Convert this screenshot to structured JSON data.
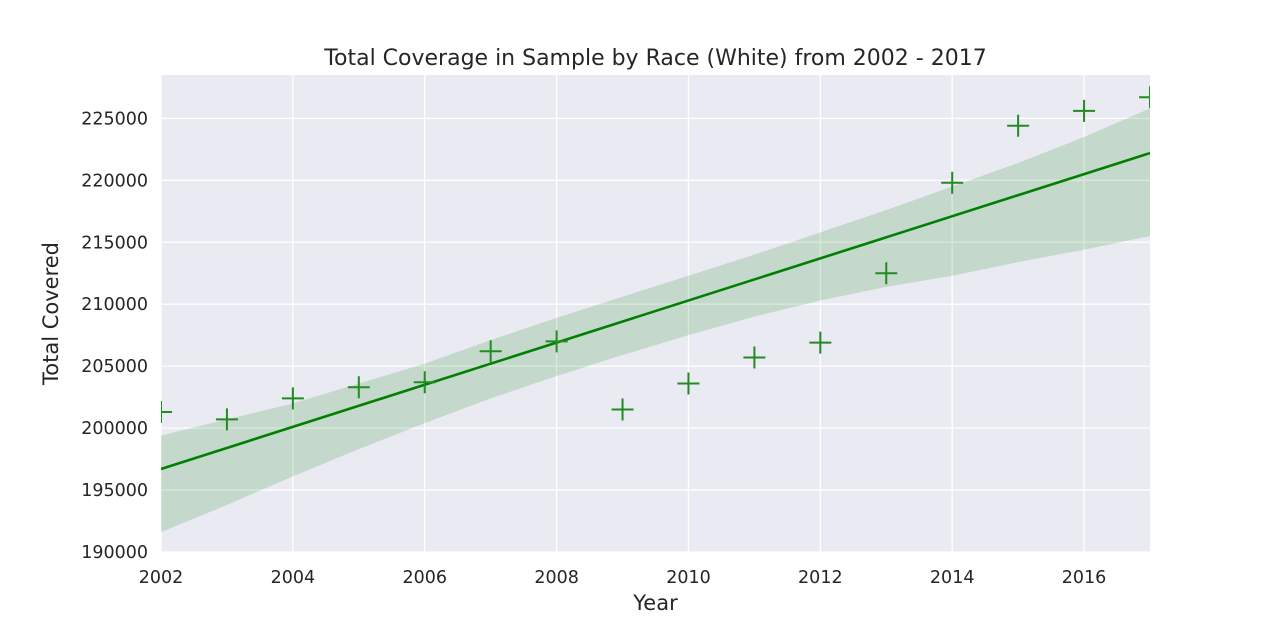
{
  "chart_data": {
    "type": "scatter",
    "title": "Total Coverage in Sample by Race (White) from 2002 - 2017",
    "xlabel": "Year",
    "ylabel": "Total Covered",
    "xlim": [
      2002,
      2017
    ],
    "ylim": [
      190000,
      228500
    ],
    "grid": true,
    "x_ticks": [
      "2002",
      "2004",
      "2006",
      "2008",
      "2010",
      "2012",
      "2014",
      "2016"
    ],
    "y_ticks": [
      "190000",
      "195000",
      "200000",
      "205000",
      "210000",
      "215000",
      "220000",
      "225000"
    ],
    "series": [
      {
        "marker": "+",
        "color": "#228b22",
        "x": [
          2002,
          2003,
          2004,
          2005,
          2006,
          2007,
          2008,
          2009,
          2010,
          2011,
          2012,
          2013,
          2014,
          2015,
          2016,
          2017
        ],
        "y": [
          201300,
          200700,
          202400,
          203300,
          203700,
          206200,
          207000,
          201500,
          203600,
          205700,
          206900,
          212500,
          219800,
          224400,
          225600,
          226700
        ]
      }
    ],
    "regression": {
      "color": "#008000",
      "band_color": "#228b22",
      "line": {
        "x": [
          2002,
          2017
        ],
        "y": [
          196700,
          222200
        ]
      },
      "ci": {
        "x": [
          2002,
          2003,
          2004,
          2005,
          2006,
          2007,
          2008,
          2009,
          2010,
          2011,
          2012,
          2013,
          2014,
          2015,
          2016,
          2017
        ],
        "lower": [
          191600,
          193800,
          196100,
          198300,
          200400,
          202400,
          204200,
          205900,
          207500,
          209000,
          210300,
          211400,
          212300,
          213400,
          214400,
          215500
        ],
        "upper": [
          199400,
          200700,
          202000,
          203600,
          205200,
          207100,
          208900,
          210600,
          212300,
          214000,
          215800,
          217600,
          219500,
          221400,
          223500,
          225800
        ]
      }
    },
    "colors": {
      "plot_background": "#eaeaf2",
      "grid": "#ffffff",
      "text": "#262626"
    }
  }
}
